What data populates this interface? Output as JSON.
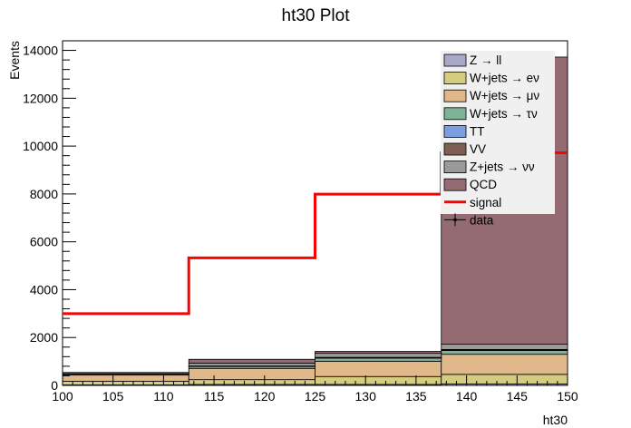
{
  "chart_data": {
    "type": "bar",
    "stacked": true,
    "title": "ht30 Plot",
    "xlabel": "ht30",
    "ylabel": "Events",
    "xlim": [
      100,
      150
    ],
    "ylim": [
      0,
      14400
    ],
    "x_ticks": [
      100,
      105,
      110,
      115,
      120,
      125,
      130,
      135,
      140,
      145,
      150
    ],
    "y_ticks": [
      0,
      2000,
      4000,
      6000,
      8000,
      10000,
      12000,
      14000
    ],
    "bin_edges": [
      100,
      112.5,
      125,
      137.5,
      150
    ],
    "grid": false,
    "legend_position": "top-right",
    "series": [
      {
        "name": "Z → ll",
        "color": "#a8a8c8",
        "values": [
          20,
          40,
          40,
          60
        ]
      },
      {
        "name": "W+jets → eν",
        "color": "#d4cd80",
        "values": [
          150,
          200,
          330,
          400
        ]
      },
      {
        "name": "W+jets → μν",
        "color": "#e0b88a",
        "values": [
          260,
          470,
          640,
          840
        ]
      },
      {
        "name": "W+jets → τν",
        "color": "#7fb397",
        "values": [
          40,
          80,
          130,
          160
        ]
      },
      {
        "name": "TT",
        "color": "#7a9ee0",
        "values": [
          5,
          10,
          15,
          20
        ]
      },
      {
        "name": "VV",
        "color": "#7d5e53",
        "values": [
          5,
          10,
          15,
          20
        ]
      },
      {
        "name": "Z+jets → νν",
        "color": "#9a9a9a",
        "values": [
          55,
          120,
          170,
          220
        ]
      },
      {
        "name": "QCD",
        "color": "#946a73",
        "values": [
          5,
          160,
          80,
          12000
        ]
      }
    ],
    "signal": {
      "name": "signal",
      "color": "#ff0000",
      "values": [
        3000,
        5330,
        7990,
        9720
      ]
    },
    "data_legend_label": "data"
  }
}
